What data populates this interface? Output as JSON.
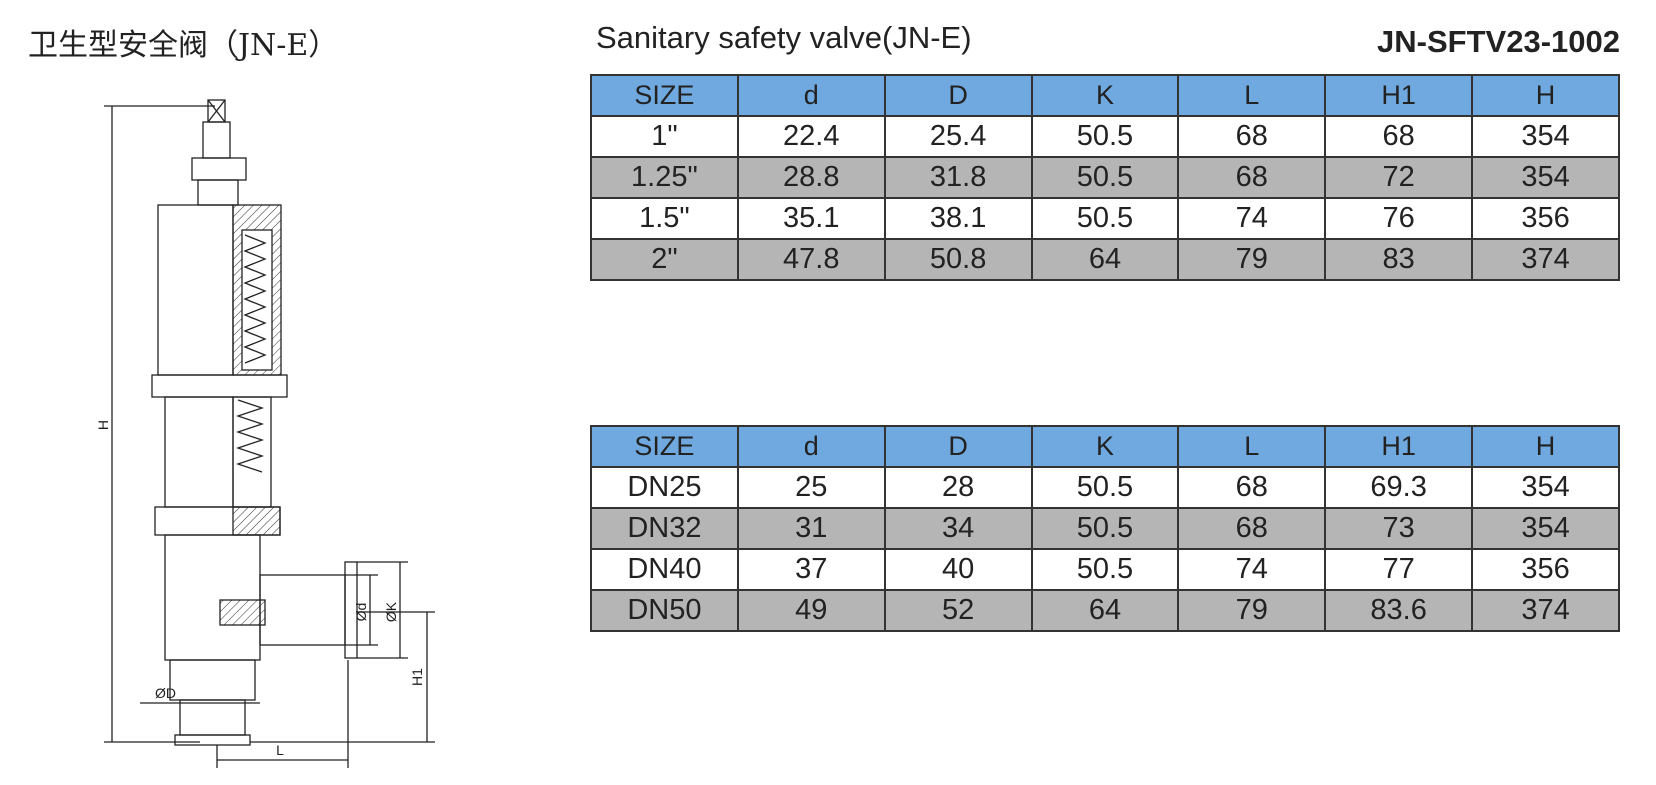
{
  "header": {
    "title_cn": "卫生型安全阀（JN-E）",
    "title_en": "Sanitary safety valve(JN-E)",
    "code": "JN-SFTV23-1002"
  },
  "drawing": {
    "labels": {
      "h": "H",
      "h1": "H1",
      "l": "L",
      "od": "ØD",
      "id": "Ød",
      "k": "ØK"
    }
  },
  "tables": [
    {
      "columns": [
        "SIZE",
        "d",
        "D",
        "K",
        "L",
        "H1",
        "H"
      ],
      "rows": [
        [
          "1\"",
          22.4,
          25.4,
          50.5,
          68,
          68,
          354
        ],
        [
          "1.25\"",
          28.8,
          31.8,
          50.5,
          68,
          72,
          354
        ],
        [
          "1.5\"",
          35.1,
          38.1,
          50.5,
          74,
          76,
          356
        ],
        [
          "2\"",
          47.8,
          50.8,
          64,
          79,
          83,
          374
        ]
      ]
    },
    {
      "columns": [
        "SIZE",
        "d",
        "D",
        "K",
        "L",
        "H1",
        "H"
      ],
      "rows": [
        [
          "DN25",
          25,
          28,
          50.5,
          68,
          69.3,
          354
        ],
        [
          "DN32",
          31,
          34,
          50.5,
          68,
          73,
          354
        ],
        [
          "DN40",
          37,
          40,
          50.5,
          74,
          77,
          356
        ],
        [
          "DN50",
          49,
          52,
          64,
          79,
          83.6,
          374
        ]
      ]
    }
  ]
}
